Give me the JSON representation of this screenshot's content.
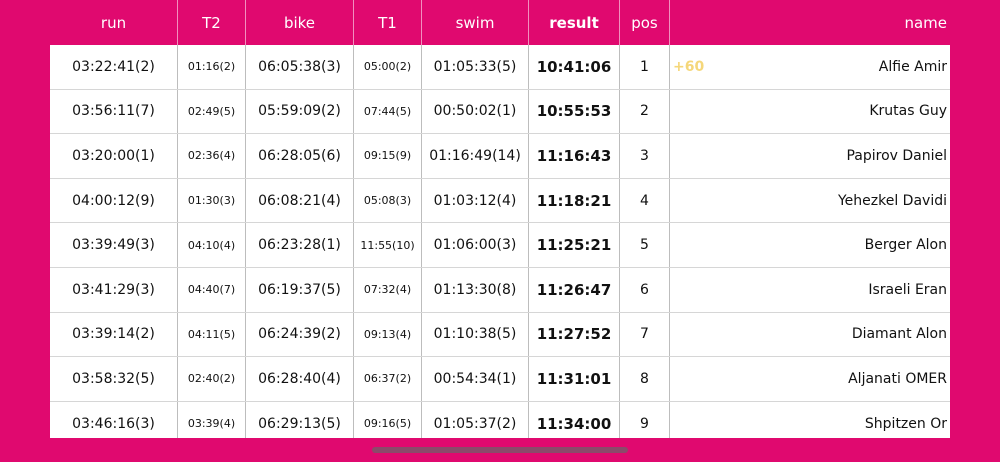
{
  "header": {
    "run": "run",
    "t2": "T2",
    "bike": "bike",
    "t1": "T1",
    "swim": "swim",
    "result": "result",
    "pos": "pos",
    "name": "name"
  },
  "rows": [
    {
      "run": "03:22:41(2)",
      "t2": "01:16(2)",
      "bike": "06:05:38(3)",
      "t1": "05:00(2)",
      "swim": "01:05:33(5)",
      "result": "10:41:06",
      "pos": "1",
      "diff": "+60",
      "name": "Alfie Amir"
    },
    {
      "run": "03:56:11(7)",
      "t2": "02:49(5)",
      "bike": "05:59:09(2)",
      "t1": "07:44(5)",
      "swim": "00:50:02(1)",
      "result": "10:55:53",
      "pos": "2",
      "diff": "",
      "name": "Krutas Guy"
    },
    {
      "run": "03:20:00(1)",
      "t2": "02:36(4)",
      "bike": "06:28:05(6)",
      "t1": "09:15(9)",
      "swim": "01:16:49(14)",
      "result": "11:16:43",
      "pos": "3",
      "diff": "",
      "name": "Papirov Daniel"
    },
    {
      "run": "04:00:12(9)",
      "t2": "01:30(3)",
      "bike": "06:08:21(4)",
      "t1": "05:08(3)",
      "swim": "01:03:12(4)",
      "result": "11:18:21",
      "pos": "4",
      "diff": "",
      "name": "Yehezkel Davidi"
    },
    {
      "run": "03:39:49(3)",
      "t2": "04:10(4)",
      "bike": "06:23:28(1)",
      "t1": "11:55(10)",
      "swim": "01:06:00(3)",
      "result": "11:25:21",
      "pos": "5",
      "diff": "",
      "name": "Berger Alon"
    },
    {
      "run": "03:41:29(3)",
      "t2": "04:40(7)",
      "bike": "06:19:37(5)",
      "t1": "07:32(4)",
      "swim": "01:13:30(8)",
      "result": "11:26:47",
      "pos": "6",
      "diff": "",
      "name": "Israeli Eran"
    },
    {
      "run": "03:39:14(2)",
      "t2": "04:11(5)",
      "bike": "06:24:39(2)",
      "t1": "09:13(4)",
      "swim": "01:10:38(5)",
      "result": "11:27:52",
      "pos": "7",
      "diff": "",
      "name": "Diamant Alon"
    },
    {
      "run": "03:58:32(5)",
      "t2": "02:40(2)",
      "bike": "06:28:40(4)",
      "t1": "06:37(2)",
      "swim": "00:54:34(1)",
      "result": "11:31:01",
      "pos": "8",
      "diff": "",
      "name": "Aljanati OMER"
    },
    {
      "run": "03:46:16(3)",
      "t2": "03:39(4)",
      "bike": "06:29:13(5)",
      "t1": "09:16(5)",
      "swim": "01:05:37(2)",
      "result": "11:34:00",
      "pos": "9",
      "diff": "",
      "name": "Shpitzen Or"
    }
  ],
  "colors": {
    "background": "#E0096F",
    "diff_text": "#F5D77A"
  }
}
